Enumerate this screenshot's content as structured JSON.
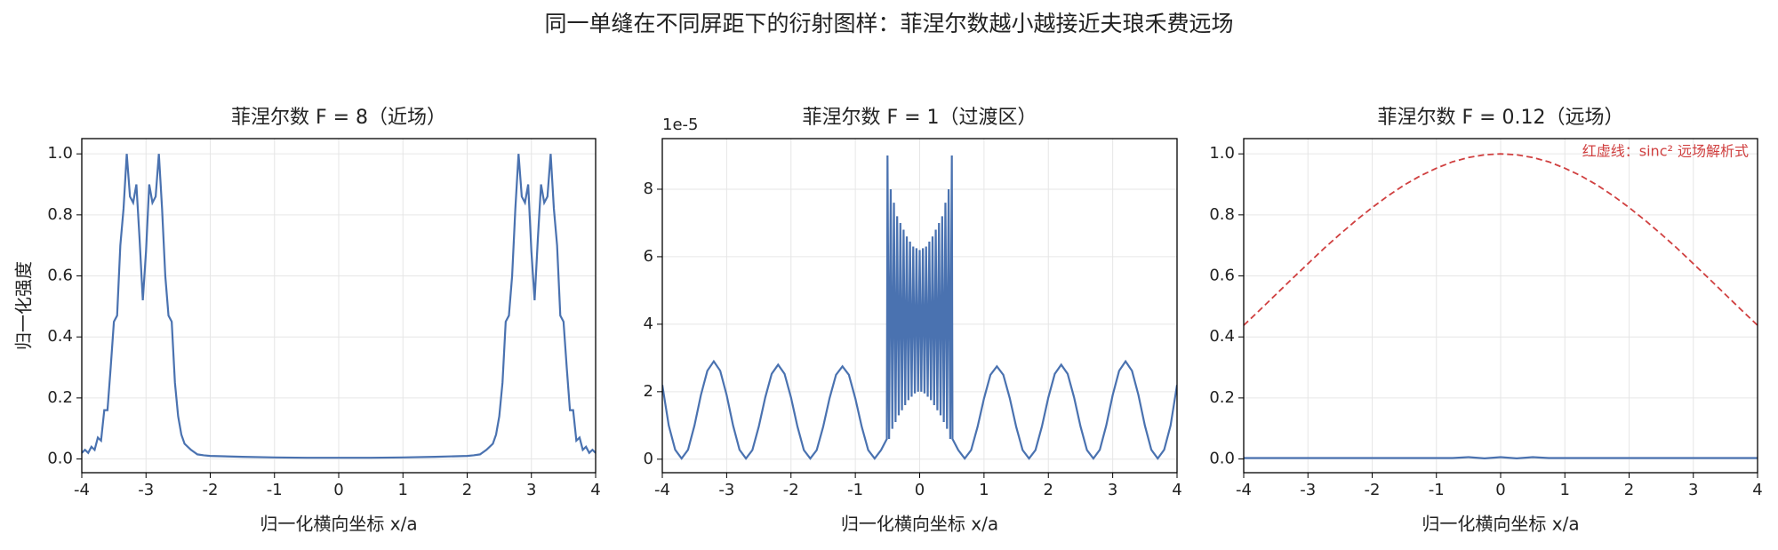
{
  "title": "同一单缝在不同屏距下的衍射图样：菲涅尔数越小越接近夫琅禾费远场",
  "chart_data": [
    {
      "type": "line",
      "title": "菲涅尔数 F = 8（近场）",
      "x_label": "归一化横向坐标 x/a",
      "y_label": "归一化强度",
      "xlim": [
        -4,
        4
      ],
      "ylim": [
        -0.045,
        1.05
      ],
      "xticks": [
        -4,
        -3,
        -2,
        -1,
        0,
        1,
        2,
        3,
        4
      ],
      "yticks": [
        {
          "value": 0,
          "label": "0.0"
        },
        0.2,
        0.4,
        0.6,
        0.8,
        {
          "value": 1,
          "label": "1.0"
        }
      ],
      "grid": true,
      "x": [
        -4,
        -3.95,
        -3.9,
        -3.85,
        -3.8,
        -3.75,
        -3.7,
        -3.65,
        -3.6,
        -3.55,
        -3.5,
        -3.45,
        -3.4,
        -3.35,
        -3.3,
        -3.25,
        -3.2,
        -3.15,
        -3.1,
        -3.05,
        -3,
        -2.95,
        -2.9,
        -2.85,
        -2.8,
        -2.75,
        -2.7,
        -2.65,
        -2.6,
        -2.55,
        -2.5,
        -2.45,
        -2.4,
        -2.3,
        -2.2,
        -2.1,
        -2,
        -1.5,
        -1,
        -0.5,
        0,
        0.5,
        1,
        1.5,
        2,
        2.1,
        2.2,
        2.3,
        2.4,
        2.45,
        2.5,
        2.55,
        2.6,
        2.65,
        2.7,
        2.75,
        2.8,
        2.85,
        2.9,
        2.95,
        3,
        3.05,
        3.1,
        3.15,
        3.2,
        3.25,
        3.3,
        3.35,
        3.4,
        3.45,
        3.5,
        3.55,
        3.6,
        3.65,
        3.7,
        3.75,
        3.8,
        3.85,
        3.9,
        3.95,
        4
      ],
      "series": [
        {
          "color": "#4a72b0",
          "dash": false,
          "values": [
            0.02,
            0.03,
            0.02,
            0.04,
            0.03,
            0.07,
            0.06,
            0.16,
            0.16,
            0.3,
            0.45,
            0.47,
            0.7,
            0.82,
            1.0,
            0.86,
            0.84,
            0.9,
            0.72,
            0.52,
            0.68,
            0.9,
            0.84,
            0.86,
            1.0,
            0.82,
            0.6,
            0.47,
            0.45,
            0.25,
            0.14,
            0.08,
            0.05,
            0.03,
            0.015,
            0.012,
            0.01,
            0.007,
            0.005,
            0.004,
            0.004,
            0.004,
            0.005,
            0.007,
            0.01,
            0.012,
            0.015,
            0.03,
            0.05,
            0.08,
            0.14,
            0.25,
            0.45,
            0.47,
            0.6,
            0.82,
            1.0,
            0.86,
            0.84,
            0.9,
            0.68,
            0.52,
            0.72,
            0.9,
            0.84,
            0.86,
            1.0,
            0.82,
            0.7,
            0.47,
            0.45,
            0.3,
            0.16,
            0.16,
            0.06,
            0.07,
            0.03,
            0.04,
            0.02,
            0.03,
            0.02
          ]
        }
      ]
    },
    {
      "type": "line",
      "title": "菲涅尔数 F = 1（过渡区）",
      "x_label": "归一化横向坐标 x/a",
      "offset_label": "1e-5",
      "xlim": [
        -4,
        4
      ],
      "ylim": [
        -0.4,
        9.5
      ],
      "xticks": [
        -4,
        -3,
        -2,
        -1,
        0,
        1,
        2,
        3,
        4
      ],
      "yticks": [
        0,
        2,
        4,
        6,
        8
      ],
      "grid": true,
      "x": [
        -4,
        -3.9,
        -3.8,
        -3.7,
        -3.6,
        -3.5,
        -3.4,
        -3.3,
        -3.2,
        -3.1,
        -3,
        -2.9,
        -2.8,
        -2.7,
        -2.6,
        -2.5,
        -2.4,
        -2.3,
        -2.2,
        -2.1,
        -2,
        -1.9,
        -1.8,
        -1.7,
        -1.6,
        -1.5,
        -1.4,
        -1.3,
        -1.2,
        -1.1,
        -1,
        -0.9,
        -0.8,
        -0.7,
        -0.6,
        -0.51,
        -0.5,
        -0.475,
        -0.45,
        -0.425,
        -0.4,
        -0.375,
        -0.35,
        -0.325,
        -0.3,
        -0.275,
        -0.25,
        -0.225,
        -0.2,
        -0.175,
        -0.15,
        -0.125,
        -0.1,
        -0.075,
        -0.05,
        -0.025,
        0,
        0.025,
        0.05,
        0.075,
        0.1,
        0.125,
        0.15,
        0.175,
        0.2,
        0.225,
        0.25,
        0.275,
        0.3,
        0.325,
        0.35,
        0.375,
        0.4,
        0.425,
        0.45,
        0.475,
        0.5,
        0.51,
        0.6,
        0.7,
        0.8,
        0.9,
        1,
        1.1,
        1.2,
        1.3,
        1.4,
        1.5,
        1.6,
        1.7,
        1.8,
        1.9,
        2,
        2.1,
        2.2,
        2.3,
        2.4,
        2.5,
        2.6,
        2.7,
        2.8,
        2.9,
        3,
        3.1,
        3.2,
        3.3,
        3.4,
        3.5,
        3.6,
        3.7,
        3.8,
        3.9,
        4
      ],
      "series": [
        {
          "color": "#4a72b0",
          "dash": false,
          "values": [
            2.2,
            1.0,
            0.28,
            0.02,
            0.28,
            1.0,
            1.9,
            2.62,
            2.9,
            2.62,
            1.9,
            1.0,
            0.28,
            0.02,
            0.27,
            0.97,
            1.83,
            2.53,
            2.8,
            2.53,
            1.83,
            0.97,
            0.27,
            0.02,
            0.27,
            0.96,
            1.81,
            2.5,
            2.75,
            2.5,
            1.8,
            0.96,
            0.27,
            0.02,
            0.27,
            0.6,
            9.0,
            0.6,
            8.0,
            0.9,
            7.6,
            1.1,
            7.2,
            1.3,
            7.0,
            1.45,
            6.8,
            1.6,
            6.6,
            1.75,
            6.45,
            1.85,
            6.3,
            1.95,
            6.25,
            2.0,
            6.2,
            2.0,
            6.25,
            1.95,
            6.3,
            1.85,
            6.45,
            1.75,
            6.6,
            1.6,
            6.8,
            1.45,
            7.0,
            1.3,
            7.2,
            1.1,
            7.6,
            0.9,
            8.0,
            0.6,
            9.0,
            0.6,
            0.27,
            0.02,
            0.27,
            0.96,
            1.8,
            2.5,
            2.75,
            2.5,
            1.81,
            0.96,
            0.27,
            0.02,
            0.27,
            0.97,
            1.83,
            2.53,
            2.8,
            2.53,
            1.83,
            0.97,
            0.27,
            0.02,
            0.28,
            1.0,
            1.9,
            2.62,
            2.9,
            2.62,
            1.9,
            1.0,
            0.28,
            0.02,
            0.28,
            1.0,
            2.2
          ]
        }
      ]
    },
    {
      "type": "line",
      "title": "菲涅尔数 F = 0.12（远场）",
      "x_label": "归一化横向坐标 x/a",
      "annotation": "红虚线：sinc² 远场解析式",
      "xlim": [
        -4,
        4
      ],
      "ylim": [
        -0.045,
        1.05
      ],
      "xticks": [
        -4,
        -3,
        -2,
        -1,
        0,
        1,
        2,
        3,
        4
      ],
      "yticks": [
        {
          "value": 0,
          "label": "0.0"
        },
        0.2,
        0.4,
        0.6,
        0.8,
        {
          "value": 1,
          "label": "1.0"
        }
      ],
      "grid": true,
      "x": [
        -4,
        -3.75,
        -3.5,
        -3.25,
        -3,
        -2.75,
        -2.5,
        -2.25,
        -2,
        -1.75,
        -1.5,
        -1.25,
        -1,
        -0.75,
        -0.5,
        -0.25,
        0,
        0.25,
        0.5,
        0.75,
        1,
        1.25,
        1.5,
        1.75,
        2,
        2.25,
        2.5,
        2.75,
        3,
        3.25,
        3.5,
        3.75,
        4
      ],
      "series": [
        {
          "color": "#4a72b0",
          "dash": false,
          "values": [
            0.003,
            0.003,
            0.003,
            0.003,
            0.003,
            0.003,
            0.003,
            0.003,
            0.003,
            0.003,
            0.003,
            0.003,
            0.003,
            0.003,
            0.006,
            0.002,
            0.006,
            0.002,
            0.006,
            0.003,
            0.003,
            0.003,
            0.003,
            0.003,
            0.003,
            0.003,
            0.003,
            0.003,
            0.003,
            0.003,
            0.003,
            0.003,
            0.003
          ]
        },
        {
          "color": "#d04040",
          "dash": true,
          "values": [
            0.438,
            0.488,
            0.539,
            0.59,
            0.64,
            0.69,
            0.737,
            0.782,
            0.824,
            0.863,
            0.898,
            0.928,
            0.953,
            0.974,
            0.988,
            0.997,
            1,
            0.997,
            0.988,
            0.974,
            0.953,
            0.928,
            0.898,
            0.863,
            0.824,
            0.782,
            0.737,
            0.69,
            0.64,
            0.59,
            0.539,
            0.488,
            0.438
          ]
        }
      ]
    }
  ]
}
